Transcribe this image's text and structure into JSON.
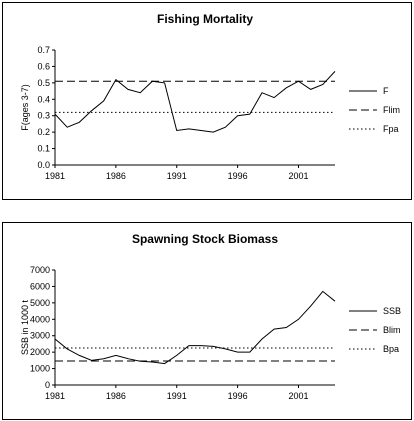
{
  "chart_data": [
    {
      "type": "line",
      "title": "Fishing Mortality",
      "xlabel": "",
      "ylabel": "F(ages 3-7)",
      "xlim": [
        1981,
        2004
      ],
      "ylim": [
        0,
        0.7
      ],
      "y_ticks": [
        "0.0",
        "0.1",
        "0.2",
        "0.3",
        "0.4",
        "0.5",
        "0.6",
        "0.7"
      ],
      "x_ticks": [
        "1981",
        "1986",
        "1991",
        "1996",
        "2001"
      ],
      "grid": false,
      "legend_position": "right",
      "series": [
        {
          "name": "F",
          "style": "solid",
          "x": [
            1981,
            1982,
            1983,
            1984,
            1985,
            1986,
            1987,
            1988,
            1989,
            1990,
            1991,
            1992,
            1993,
            1994,
            1995,
            1996,
            1997,
            1998,
            1999,
            2000,
            2001,
            2002,
            2003,
            2004
          ],
          "y": [
            0.31,
            0.23,
            0.26,
            0.33,
            0.39,
            0.52,
            0.46,
            0.44,
            0.51,
            0.5,
            0.21,
            0.22,
            0.21,
            0.2,
            0.23,
            0.3,
            0.31,
            0.44,
            0.41,
            0.47,
            0.51,
            0.46,
            0.49,
            0.57
          ]
        },
        {
          "name": "Flim",
          "style": "dashed",
          "constant": 0.51
        },
        {
          "name": "Fpa",
          "style": "dotted",
          "constant": 0.32
        }
      ]
    },
    {
      "type": "line",
      "title": "Spawning Stock Biomass",
      "xlabel": "",
      "ylabel": "SSB in 1000 t",
      "xlim": [
        1981,
        2004
      ],
      "ylim": [
        0,
        7000
      ],
      "y_ticks": [
        "0",
        "1000",
        "2000",
        "3000",
        "4000",
        "5000",
        "6000",
        "7000"
      ],
      "x_ticks": [
        "1981",
        "1986",
        "1991",
        "1996",
        "2001"
      ],
      "grid": false,
      "legend_position": "right",
      "series": [
        {
          "name": "SSB",
          "style": "solid",
          "x": [
            1981,
            1982,
            1983,
            1984,
            1985,
            1986,
            1987,
            1988,
            1989,
            1990,
            1991,
            1992,
            1993,
            1994,
            1995,
            1996,
            1997,
            1998,
            1999,
            2000,
            2001,
            2002,
            2003,
            2004
          ],
          "y": [
            2800,
            2200,
            1800,
            1500,
            1600,
            1800,
            1600,
            1450,
            1400,
            1300,
            1800,
            2400,
            2400,
            2350,
            2200,
            2000,
            2000,
            2800,
            3400,
            3500,
            4000,
            4800,
            5700,
            5100
          ]
        },
        {
          "name": "Blim",
          "style": "dashed",
          "constant": 1460
        },
        {
          "name": "Bpa",
          "style": "dotted",
          "constant": 2250
        }
      ]
    }
  ]
}
